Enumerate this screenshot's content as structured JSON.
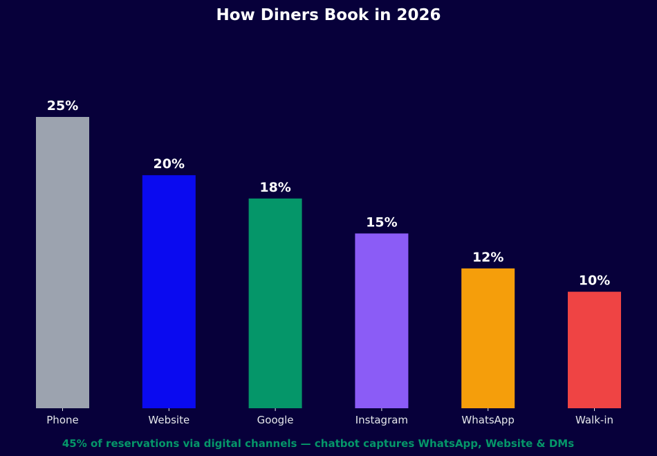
{
  "chart_data": {
    "type": "bar",
    "title": "How Diners Book in 2026",
    "xlabel": "",
    "ylabel": "",
    "ylim": [
      0,
      25
    ],
    "grid": false,
    "legend": "none",
    "categories": [
      "Phone",
      "Website",
      "Google",
      "Instagram",
      "WhatsApp",
      "Walk-in"
    ],
    "values": [
      25,
      20,
      18,
      15,
      12,
      10
    ],
    "value_labels": [
      "25%",
      "20%",
      "18%",
      "15%",
      "12%",
      "10%"
    ],
    "colors": [
      "#9ca3af",
      "#0a0af0",
      "#059669",
      "#8b5cf6",
      "#f59e0b",
      "#ef4444"
    ]
  },
  "footnote": "45% of reservations via digital channels — chatbot captures WhatsApp, Website & DMs",
  "colors": {
    "background": "#07003a",
    "footnote": "#059669",
    "text": "#ffffff",
    "tick": "#e5e7eb"
  }
}
